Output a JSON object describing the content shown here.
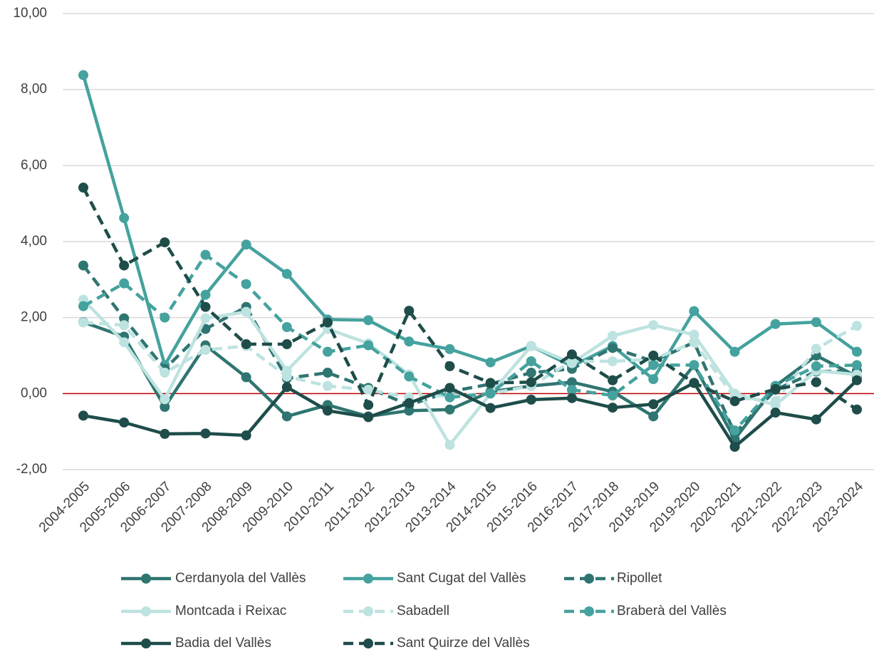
{
  "chart_data": {
    "type": "line",
    "categories": [
      "2004-2005",
      "2005-2006",
      "2006-2007",
      "2007-2008",
      "2008-2009",
      "2009-2010",
      "2010-2011",
      "2011-2012",
      "2012-2013",
      "2013-2014",
      "2014-2015",
      "2015-2016",
      "2016-2017",
      "2017-2018",
      "2018-2019",
      "2019-2020",
      "2020-2021",
      "2021-2022",
      "2022-2023",
      "2023-2024"
    ],
    "ylim": [
      -2,
      10
    ],
    "yticks": [
      {
        "value": -2,
        "label": "-2,00"
      },
      {
        "value": 0,
        "label": "0,00"
      },
      {
        "value": 2,
        "label": "2,00"
      },
      {
        "value": 4,
        "label": "4,00"
      },
      {
        "value": 6,
        "label": "6,00"
      },
      {
        "value": 8,
        "label": "8,00"
      },
      {
        "value": 10,
        "label": "10,00"
      }
    ],
    "grid": true,
    "legend": "bottom",
    "series": [
      {
        "name": "Cerdanyola del Vallès",
        "color": "#2f7571",
        "dashed": false,
        "values": [
          1.88,
          1.5,
          -0.35,
          1.27,
          0.43,
          -0.6,
          -0.3,
          -0.6,
          -0.45,
          -0.42,
          0.05,
          0.2,
          0.3,
          0.05,
          -0.6,
          0.75,
          -1.2,
          0.2,
          1.0,
          0.45
        ]
      },
      {
        "name": "Sant Cugat del Vallès",
        "color": "#45a29e",
        "dashed": false,
        "values": [
          8.38,
          4.62,
          0.75,
          2.6,
          3.92,
          3.15,
          1.95,
          1.93,
          1.37,
          1.17,
          0.82,
          1.25,
          0.72,
          1.25,
          0.38,
          2.17,
          1.1,
          1.83,
          1.88,
          1.1
        ]
      },
      {
        "name": "Ripollet",
        "color": "#2f7571",
        "dashed": true,
        "values": [
          3.37,
          1.98,
          0.65,
          1.7,
          2.28,
          0.4,
          0.55,
          0.15,
          -0.3,
          0.05,
          0.25,
          0.55,
          0.65,
          1.2,
          0.85,
          1.35,
          -1.05,
          0.1,
          0.58,
          0.6
        ]
      },
      {
        "name": "Montcada i Reixac",
        "color": "#bde3e0",
        "dashed": false,
        "values": [
          2.47,
          1.35,
          -0.15,
          1.98,
          2.15,
          0.6,
          1.7,
          1.32,
          0.5,
          -1.35,
          0.0,
          1.25,
          0.8,
          1.52,
          1.8,
          1.55,
          0.0,
          -0.3,
          0.6,
          0.5
        ]
      },
      {
        "name": "Sabadell",
        "color": "#bde3e0",
        "dashed": true,
        "values": [
          1.87,
          1.8,
          0.55,
          1.15,
          1.25,
          0.45,
          0.2,
          0.1,
          -0.1,
          -0.05,
          0.0,
          0.2,
          0.85,
          0.85,
          0.9,
          1.35,
          -0.1,
          -0.2,
          1.18,
          1.78
        ]
      },
      {
        "name": "Braberà del Vallès",
        "color": "#45a29e",
        "dashed": true,
        "values": [
          2.3,
          2.9,
          2.0,
          3.65,
          2.88,
          1.75,
          1.1,
          1.27,
          0.45,
          -0.1,
          0.0,
          0.85,
          0.1,
          -0.05,
          0.75,
          0.75,
          -0.97,
          0.2,
          0.72,
          0.75
        ]
      },
      {
        "name": "Badia del Vallès",
        "color": "#1e4d4a",
        "dashed": false,
        "values": [
          -0.58,
          -0.76,
          -1.06,
          -1.05,
          -1.1,
          0.17,
          -0.45,
          -0.62,
          -0.25,
          0.15,
          -0.38,
          -0.16,
          -0.12,
          -0.37,
          -0.28,
          0.28,
          -1.4,
          -0.5,
          -0.68,
          0.35
        ]
      },
      {
        "name": "Sant Quirze del Vallès",
        "color": "#1e4d4a",
        "dashed": true,
        "values": [
          5.42,
          3.37,
          3.98,
          2.28,
          1.3,
          1.3,
          1.87,
          -0.3,
          2.18,
          0.72,
          0.28,
          0.3,
          1.03,
          0.35,
          1.0,
          0.28,
          -0.2,
          0.12,
          0.3,
          -0.42
        ]
      }
    ]
  }
}
